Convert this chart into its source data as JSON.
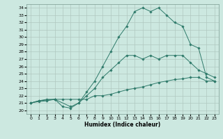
{
  "xlabel": "Humidex (Indice chaleur)",
  "xlim": [
    -0.5,
    23.5
  ],
  "ylim": [
    19.5,
    34.5
  ],
  "xticks": [
    0,
    1,
    2,
    3,
    4,
    5,
    6,
    7,
    8,
    9,
    10,
    11,
    12,
    13,
    14,
    15,
    16,
    17,
    18,
    19,
    20,
    21,
    22,
    23
  ],
  "yticks": [
    20,
    21,
    22,
    23,
    24,
    25,
    26,
    27,
    28,
    29,
    30,
    31,
    32,
    33,
    34
  ],
  "bg_color": "#cce8e0",
  "grid_color": "#b0c8c0",
  "line_color": "#2e7a6a",
  "curves": [
    {
      "x": [
        0,
        1,
        3,
        5,
        6,
        7,
        8,
        9,
        10,
        11,
        12,
        13,
        14,
        15,
        16,
        17,
        18,
        19,
        20,
        21,
        22,
        23
      ],
      "y": [
        21,
        21.3,
        21.5,
        20.5,
        21.0,
        22.5,
        24.0,
        26.0,
        28.0,
        30.0,
        31.5,
        33.5,
        34.0,
        33.5,
        34.0,
        33.0,
        32.0,
        31.5,
        29.0,
        28.5,
        24.5,
        24.0
      ]
    },
    {
      "x": [
        0,
        1,
        2,
        3,
        4,
        5,
        6,
        7,
        8,
        9,
        10,
        11,
        12,
        13,
        14,
        15,
        16,
        17,
        18,
        19,
        20,
        21,
        22,
        23
      ],
      "y": [
        21,
        21.3,
        21.5,
        21.5,
        20.5,
        20.3,
        21.0,
        22.0,
        23.0,
        24.5,
        25.5,
        26.5,
        27.5,
        27.5,
        27.0,
        27.5,
        27.0,
        27.5,
        27.5,
        27.5,
        26.5,
        25.5,
        25.0,
        24.5
      ]
    },
    {
      "x": [
        0,
        1,
        2,
        3,
        4,
        5,
        6,
        7,
        8,
        9,
        10,
        11,
        12,
        13,
        14,
        15,
        16,
        17,
        18,
        19,
        20,
        21,
        22,
        23
      ],
      "y": [
        21,
        21.2,
        21.3,
        21.5,
        21.5,
        21.5,
        21.5,
        21.5,
        22.0,
        22.0,
        22.2,
        22.5,
        22.8,
        23.0,
        23.2,
        23.5,
        23.8,
        24.0,
        24.2,
        24.3,
        24.5,
        24.5,
        24.0,
        24.0
      ]
    }
  ]
}
